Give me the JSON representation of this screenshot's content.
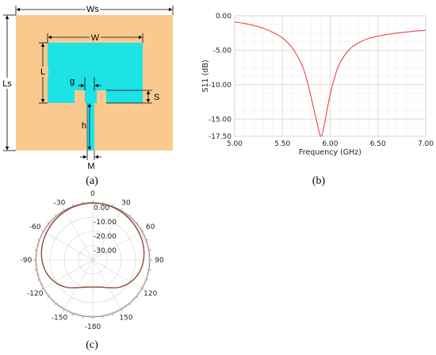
{
  "captions": {
    "a": "(a)",
    "b": "(b)",
    "c": "(c)"
  },
  "antenna": {
    "labels": {
      "ws": "Ws",
      "w": "W",
      "ls": "Ls",
      "l": "L",
      "g": "g",
      "s": "S",
      "h": "h",
      "m": "M"
    },
    "colors": {
      "substrate": "#f9c98e",
      "patch": "#1de2e6",
      "dim_line": "#000000"
    }
  },
  "chart_data": [
    {
      "type": "line",
      "title": "",
      "xlabel": "Frequency (GHz)",
      "ylabel": "S11 (dB)",
      "xlim": [
        5.0,
        7.0
      ],
      "ylim": [
        -17.5,
        0.0
      ],
      "xticks": [
        "5.00",
        "5.50",
        "6.00",
        "6.50",
        "7.00"
      ],
      "yticks": [
        "0.00",
        "-5.00",
        "-10.00",
        "-15.00",
        "-17.50"
      ],
      "grid": true,
      "color": "#e8474a",
      "series": [
        {
          "x": [
            5.0,
            5.1,
            5.2,
            5.3,
            5.4,
            5.5,
            5.6,
            5.7,
            5.75,
            5.8,
            5.85,
            5.88,
            5.9,
            5.92,
            5.95,
            6.0,
            6.05,
            6.1,
            6.2,
            6.3,
            6.4,
            6.5,
            6.6,
            6.7,
            6.8,
            6.9,
            7.0
          ],
          "y": [
            -0.9,
            -1.1,
            -1.4,
            -1.8,
            -2.4,
            -3.2,
            -4.6,
            -7.0,
            -9.0,
            -11.8,
            -14.8,
            -16.6,
            -17.5,
            -17.0,
            -15.0,
            -11.4,
            -8.8,
            -6.9,
            -4.9,
            -3.9,
            -3.3,
            -2.95,
            -2.7,
            -2.5,
            -2.35,
            -2.2,
            -2.1
          ]
        }
      ]
    },
    {
      "type": "polar",
      "title": "",
      "angle_ticks": [
        "0",
        "30",
        "60",
        "90",
        "120",
        "150",
        "-180",
        "-150",
        "-120",
        "-90",
        "-60",
        "-30"
      ],
      "radial_ticks": [
        "0.00",
        "-10.00",
        "-20.00",
        "-30.00"
      ],
      "rlim": [
        -40,
        0
      ],
      "color": "#8b4a3a",
      "series": [
        {
          "angle_deg": [
            0,
            15,
            30,
            45,
            60,
            75,
            90,
            105,
            120,
            135,
            150,
            165,
            180,
            195,
            210,
            225,
            240,
            255,
            270,
            285,
            300,
            315,
            330,
            345,
            360
          ],
          "gain_db": [
            0,
            -0.2,
            -0.8,
            -1.6,
            -2.4,
            -3.2,
            -4.4,
            -6.2,
            -9.2,
            -13.0,
            -17.5,
            -20.3,
            -21.0,
            -20.3,
            -17.5,
            -13.0,
            -9.2,
            -6.2,
            -4.4,
            -3.2,
            -2.4,
            -1.6,
            -0.8,
            -0.2,
            0
          ]
        }
      ]
    }
  ]
}
